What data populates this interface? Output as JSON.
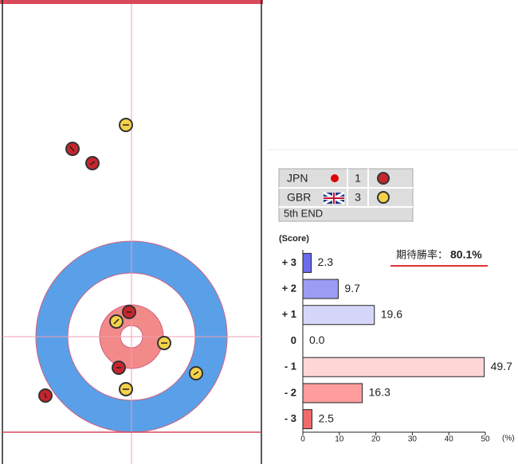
{
  "scoreboard": {
    "rows": [
      {
        "team": "JPN",
        "score": 1
      },
      {
        "team": "GBR",
        "score": 3
      }
    ],
    "end": "5th END"
  },
  "chart_data": {
    "type": "bar",
    "orientation": "horizontal",
    "y_label": "(Score)",
    "x_label": "(%)",
    "categories": [
      "+ 3",
      "+ 2",
      "+ 1",
      "0",
      "- 1",
      "- 2",
      "- 3"
    ],
    "values": [
      2.3,
      9.7,
      19.6,
      0.0,
      49.7,
      16.3,
      2.5
    ],
    "value_labels": [
      "2.3",
      "9.7",
      "19.6",
      "0.0",
      "49.7",
      "16.3",
      "2.5"
    ],
    "colors": [
      "#6b6bf0",
      "#9c9cf5",
      "#d6d6fb",
      "#ffffff",
      "#ffd6d6",
      "#ff9c9c",
      "#f06b6b"
    ],
    "xlim": [
      0,
      50
    ],
    "xticks": [
      0,
      10,
      20,
      30,
      40,
      50
    ],
    "annotation": {
      "label": "期待勝率：",
      "value": "80.1%"
    }
  }
}
